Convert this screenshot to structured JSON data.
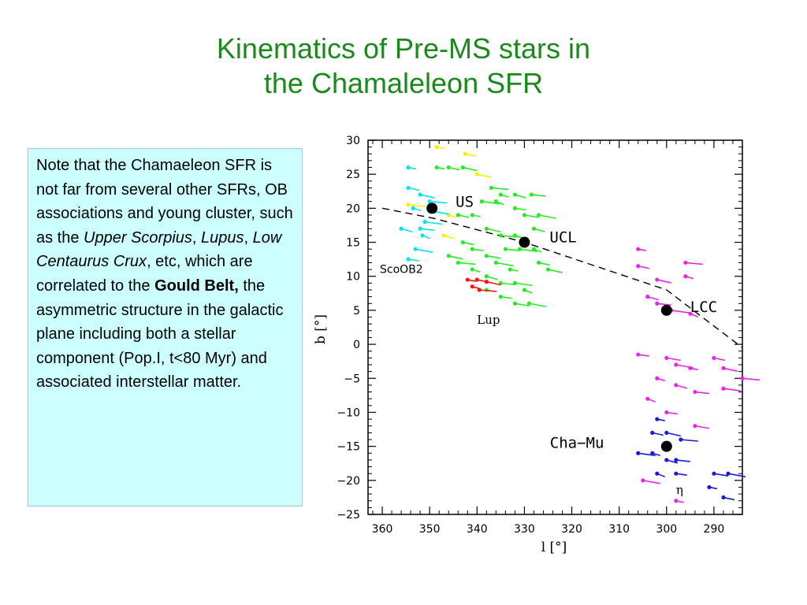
{
  "title": {
    "line1": "Kinematics of Pre-MS stars in",
    "line2": "the Chamaleleon SFR"
  },
  "note": {
    "t1": "Note that the Chamaeleon SFR is not far from several other SFRs, OB associations and young cluster, such as the ",
    "i1": "Upper Scorpius",
    "t2": ", ",
    "i2": "Lupus",
    "t3": ", ",
    "i3": "Low Centaurus Crux",
    "t4": ", etc, which are correlated to the ",
    "b1": "Gould Belt,",
    "t5": " the asymmetric structure in the galactic plane including both a stellar component (Pop.I, t<80 Myr) and associated interstellar matter."
  },
  "chart_data": {
    "type": "scatter",
    "xlabel": "l [°]",
    "ylabel": "b [°]",
    "xlim": [
      363,
      284
    ],
    "ylim": [
      -25,
      30
    ],
    "x_reversed": true,
    "x_ticks": [
      "360",
      "350",
      "340",
      "330",
      "320",
      "310",
      "300",
      "290"
    ],
    "y_ticks": [
      "30",
      "25",
      "20",
      "15",
      "10",
      "5",
      "0",
      "−5",
      "−10",
      "−15",
      "−20",
      "−25"
    ],
    "group_centers": [
      {
        "name": "US",
        "l": 349.5,
        "b": 20
      },
      {
        "name": "UCL",
        "l": 330,
        "b": 15
      },
      {
        "name": "LCC",
        "l": 300,
        "b": 5
      },
      {
        "name": "Cha−Mu",
        "l": 300,
        "b": -15
      }
    ],
    "text_labels": [
      {
        "text": "ScoOB2",
        "l": 360.5,
        "b": 10.5
      },
      {
        "text": "Lup",
        "l": 340,
        "b": 3
      },
      {
        "text": "η",
        "l": 298,
        "b": -22
      }
    ],
    "gould_belt_line": [
      [
        360,
        20
      ],
      [
        349,
        18.5
      ],
      [
        330,
        15
      ],
      [
        300,
        8
      ],
      [
        284,
        -0.5
      ]
    ],
    "series": [
      {
        "color": "#ffee00",
        "points": [
          [
            348.5,
            29
          ],
          [
            342.5,
            28
          ],
          [
            340,
            25
          ],
          [
            354.5,
            20.5
          ],
          [
            346,
            19
          ],
          [
            347,
            16
          ]
        ]
      },
      {
        "color": "#00e5ee",
        "points": [
          [
            354.5,
            26
          ],
          [
            354.5,
            23
          ],
          [
            352,
            22
          ],
          [
            350,
            21
          ],
          [
            353.5,
            20
          ],
          [
            356,
            17
          ],
          [
            352,
            17
          ],
          [
            351,
            18
          ],
          [
            351.5,
            16
          ],
          [
            354.5,
            12.5
          ],
          [
            349,
            19.5
          ],
          [
            353,
            14
          ]
        ]
      },
      {
        "color": "#22ee22",
        "points": [
          [
            348.5,
            26
          ],
          [
            346,
            26
          ],
          [
            343,
            26
          ],
          [
            337,
            23
          ],
          [
            335,
            22
          ],
          [
            332,
            22
          ],
          [
            328.5,
            22
          ],
          [
            339,
            21
          ],
          [
            336,
            21
          ],
          [
            332,
            20
          ],
          [
            330,
            19
          ],
          [
            327,
            19
          ],
          [
            341,
            19
          ],
          [
            344,
            19
          ],
          [
            338,
            17
          ],
          [
            335,
            16
          ],
          [
            332,
            16
          ],
          [
            328,
            17
          ],
          [
            334,
            14
          ],
          [
            331,
            14
          ],
          [
            328,
            14
          ],
          [
            341,
            14
          ],
          [
            338,
            13
          ],
          [
            336,
            12
          ],
          [
            333,
            11
          ],
          [
            327,
            12
          ],
          [
            325,
            11
          ],
          [
            344,
            12
          ],
          [
            341,
            11
          ],
          [
            338,
            10
          ],
          [
            335,
            9
          ],
          [
            332,
            9
          ],
          [
            330,
            8
          ],
          [
            335,
            7
          ],
          [
            332,
            6
          ],
          [
            329,
            6
          ],
          [
            338,
            8
          ],
          [
            343,
            15
          ],
          [
            346,
            13
          ]
        ]
      },
      {
        "color": "#ff1111",
        "points": [
          [
            342,
            9.5
          ],
          [
            340,
            9.5
          ],
          [
            338,
            9.2
          ],
          [
            339.5,
            8
          ],
          [
            341,
            8.5
          ]
        ]
      },
      {
        "color": "#ee22ee",
        "points": [
          [
            306,
            14
          ],
          [
            306,
            11.5
          ],
          [
            302,
            9.5
          ],
          [
            296,
            12
          ],
          [
            296,
            10
          ],
          [
            304,
            7
          ],
          [
            302,
            6
          ],
          [
            299,
            5
          ],
          [
            295,
            4.5
          ],
          [
            306,
            -1.5
          ],
          [
            300,
            -2
          ],
          [
            298,
            -3
          ],
          [
            295,
            -3.5
          ],
          [
            290,
            -2
          ],
          [
            288,
            -3.5
          ],
          [
            284,
            -5
          ],
          [
            302,
            -5
          ],
          [
            298,
            -6
          ],
          [
            294,
            -7
          ],
          [
            288,
            -6.5
          ],
          [
            304,
            -8
          ],
          [
            300,
            -10
          ],
          [
            294,
            -12
          ],
          [
            305,
            -20
          ],
          [
            298,
            -23
          ]
        ]
      },
      {
        "color": "#1a1add",
        "points": [
          [
            302,
            -11
          ],
          [
            303,
            -13
          ],
          [
            300,
            -13
          ],
          [
            297,
            -14
          ],
          [
            303,
            -16
          ],
          [
            300,
            -17
          ],
          [
            298,
            -17
          ],
          [
            306,
            -16
          ],
          [
            302,
            -19
          ],
          [
            298,
            -19
          ],
          [
            290,
            -19
          ],
          [
            287,
            -19
          ],
          [
            291,
            -21
          ],
          [
            288,
            -22.5
          ]
        ]
      }
    ]
  },
  "colors": {
    "title": "#1a8a1a",
    "note_background": "#ccffff"
  }
}
